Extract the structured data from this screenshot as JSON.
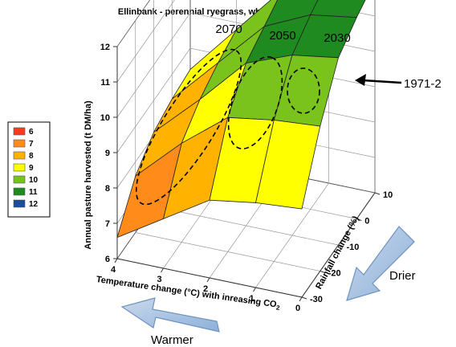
{
  "chart_data": {
    "type": "surface",
    "title": "Ellinbank - perennial ryegrass, white clover",
    "z_label": "Annual pasture harvested (t DM/ha)",
    "x_label": "Temperature change (°C) with inreasing CO",
    "x_label_subscript": "2",
    "y_label": "Rainfall change (%)",
    "x_ticks": [
      "4",
      "3",
      "2",
      "1",
      "0"
    ],
    "y_ticks": [
      "10",
      "0",
      "-10",
      "-20",
      "-30"
    ],
    "z_ticks": [
      "6",
      "7",
      "8",
      "9",
      "10",
      "11",
      "12"
    ],
    "zlim": [
      6,
      12
    ],
    "x": [
      4,
      3,
      2,
      1,
      0
    ],
    "y": [
      -30,
      -20,
      -10,
      0,
      10
    ],
    "z": [
      [
        6.6,
        7.6,
        8.1,
        8.3,
        8.4
      ],
      [
        7.4,
        8.8,
        9.3,
        9.6,
        9.8
      ],
      [
        8.2,
        9.8,
        10.6,
        10.9,
        11.2
      ],
      [
        8.4,
        10.0,
        11.1,
        11.5,
        11.8
      ],
      [
        8.5,
        10.1,
        11.3,
        11.7,
        12.0
      ]
    ],
    "legend": [
      {
        "label": "6",
        "color": "#ff3b1f"
      },
      {
        "label": "7",
        "color": "#ff8c1a"
      },
      {
        "label": "8",
        "color": "#ffb300"
      },
      {
        "label": "9",
        "color": "#ffff00"
      },
      {
        "label": "10",
        "color": "#7ac21c"
      },
      {
        "label": "11",
        "color": "#1f8a1f"
      },
      {
        "label": "12",
        "color": "#1b4f9c"
      }
    ],
    "scenario_years": [
      "2070",
      "2050",
      "2030"
    ],
    "baseline_label": "1971-2",
    "annotations": {
      "drier": "Drier",
      "warmer": "Warmer"
    }
  }
}
